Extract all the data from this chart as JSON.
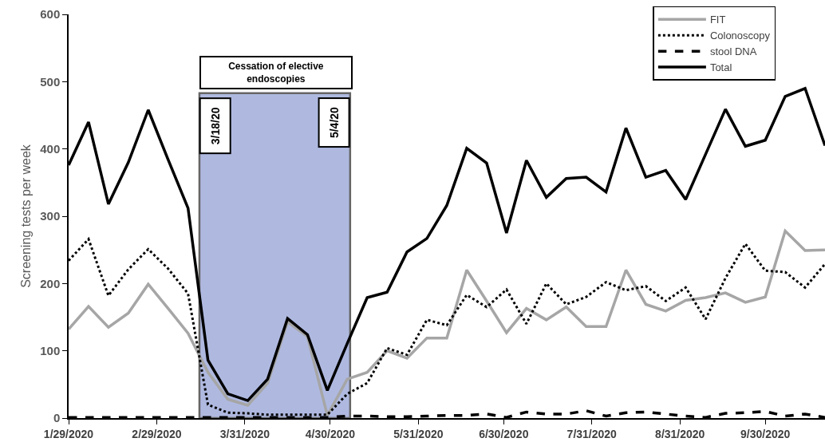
{
  "chart_data": {
    "type": "line",
    "ylabel": "Screening tests per week",
    "x": [
      "2020-01-29",
      "2020-02-05",
      "2020-02-12",
      "2020-02-19",
      "2020-02-26",
      "2020-03-04",
      "2020-03-11",
      "2020-03-18",
      "2020-03-25",
      "2020-04-01",
      "2020-04-08",
      "2020-04-15",
      "2020-04-22",
      "2020-04-29",
      "2020-05-06",
      "2020-05-13",
      "2020-05-20",
      "2020-05-27",
      "2020-06-03",
      "2020-06-10",
      "2020-06-17",
      "2020-06-24",
      "2020-07-01",
      "2020-07-08",
      "2020-07-15",
      "2020-07-22",
      "2020-07-29",
      "2020-08-05",
      "2020-08-12",
      "2020-08-19",
      "2020-08-26",
      "2020-09-02",
      "2020-09-09",
      "2020-09-16",
      "2020-09-23",
      "2020-09-30",
      "2020-10-07",
      "2020-10-14",
      "2020-10-21"
    ],
    "series": [
      {
        "name": "FIT",
        "color": "#a6a6a6",
        "line_style": "solid",
        "values": [
          132,
          166,
          135,
          156,
          199,
          163,
          126,
          68,
          28,
          19,
          52,
          143,
          121,
          4,
          58,
          68,
          100,
          89,
          119,
          119,
          220,
          174,
          127,
          163,
          146,
          165,
          136,
          136,
          220,
          169,
          159,
          175,
          179,
          186,
          172,
          180,
          278,
          249,
          250
        ]
      },
      {
        "name": "Colonoscopy",
        "color": "#000000",
        "line_style": "dotted",
        "values": [
          234,
          266,
          182,
          221,
          251,
          222,
          185,
          20,
          8,
          7,
          5,
          5,
          5,
          5,
          36,
          52,
          104,
          94,
          146,
          138,
          183,
          165,
          191,
          140,
          200,
          169,
          180,
          202,
          190,
          196,
          174,
          194,
          147,
          208,
          259,
          219,
          217,
          194,
          229
        ]
      },
      {
        "name": "stool DNA",
        "color": "#000000",
        "line_style": "dashed",
        "values": [
          1,
          1,
          1,
          1,
          1,
          1,
          1,
          1,
          1,
          1,
          1,
          1,
          1,
          1,
          3,
          3,
          2,
          2,
          3,
          4,
          4,
          6,
          1,
          9,
          6,
          6,
          11,
          3,
          8,
          9,
          6,
          3,
          1,
          7,
          8,
          10,
          3,
          6,
          1
        ]
      },
      {
        "name": "Total",
        "color": "#000000",
        "line_style": "solid",
        "values": [
          376,
          440,
          318,
          380,
          458,
          384,
          312,
          86,
          36,
          26,
          58,
          148,
          124,
          41,
          111,
          179,
          187,
          247,
          267,
          316,
          401,
          379,
          275,
          383,
          328,
          356,
          358,
          336,
          431,
          358,
          368,
          325,
          392,
          459,
          404,
          413,
          478,
          490,
          405
        ]
      }
    ],
    "xlim": [
      "2020-01-29",
      "2020-10-21"
    ],
    "xticks": [
      {
        "value": "2020-01-29",
        "label": "1/29/2020"
      },
      {
        "value": "2020-02-29",
        "label": "2/29/2020"
      },
      {
        "value": "2020-03-31",
        "label": "3/31/2020"
      },
      {
        "value": "2020-04-30",
        "label": "4/30/2020"
      },
      {
        "value": "2020-05-31",
        "label": "5/31/2020"
      },
      {
        "value": "2020-06-30",
        "label": "6/30/2020"
      },
      {
        "value": "2020-07-31",
        "label": "7/31/2020"
      },
      {
        "value": "2020-08-31",
        "label": "8/31/2020"
      },
      {
        "value": "2020-09-30",
        "label": "9/30/2020"
      }
    ],
    "ylim": [
      0,
      600
    ],
    "yticks": [
      0,
      100,
      200,
      300,
      400,
      500,
      600
    ],
    "bands": [
      {
        "axis": "x",
        "from": "2020-03-15",
        "to": "2020-05-07",
        "label": "Cessation of elective endoscopies",
        "color": "#7b8bcc"
      }
    ],
    "annotations": [
      "3/18/20",
      "5/4/20"
    ],
    "legend": "top right",
    "grid": false,
    "marker": "none"
  }
}
